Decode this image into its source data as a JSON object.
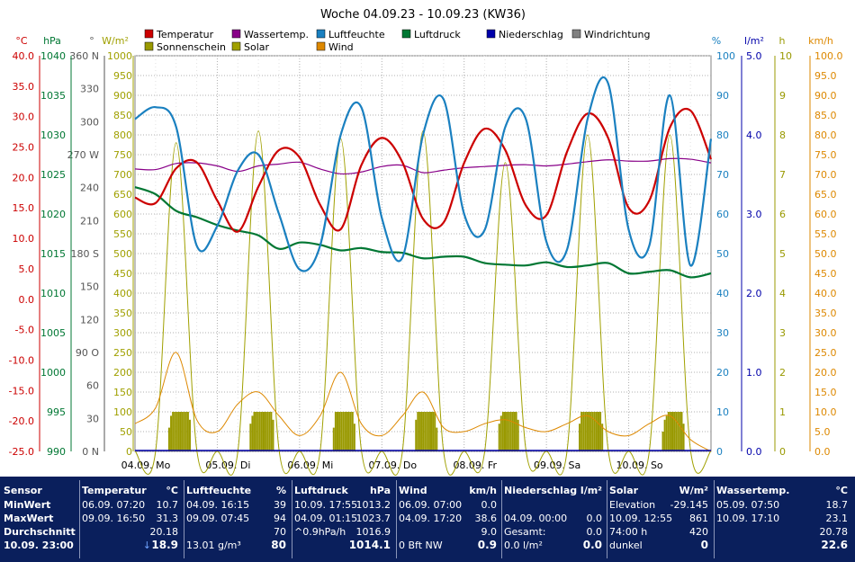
{
  "chart_data": {
    "type": "line",
    "title": "Woche 04.09.23 - 10.09.23 (KW36)",
    "x_labels": [
      "04.09.  Mo",
      "05.09.  Di",
      "06.09.  Mi",
      "07.09.  Do",
      "08.09.  Fr",
      "09.09.  Sa",
      "10.09.  So"
    ],
    "legend": [
      {
        "name": "Temperatur",
        "color": "#cc0000"
      },
      {
        "name": "Wassertemp.",
        "color": "#880088"
      },
      {
        "name": "Luftfeuchte",
        "color": "#1a80c0"
      },
      {
        "name": "Luftdruck",
        "color": "#007733"
      },
      {
        "name": "Niederschlag",
        "color": "#0000aa"
      },
      {
        "name": "Windrichtung",
        "color": "#808080"
      },
      {
        "name": "Sonnenschein",
        "color": "#999900"
      },
      {
        "name": "Solar",
        "color": "#a0a000"
      },
      {
        "name": "Wind",
        "color": "#dd8800"
      }
    ],
    "axes": {
      "temp": {
        "unit": "°C",
        "min": -25,
        "max": 40,
        "ticks": [
          "40.0",
          "35.0",
          "30.0",
          "25.0",
          "20.0",
          "15.0",
          "10.0",
          "5.0",
          "0.0",
          "-5.0",
          "-10.0",
          "-15.0",
          "-20.0",
          "-25.0"
        ],
        "color": "#cc0000"
      },
      "pressure": {
        "unit": "hPa",
        "min": 990,
        "max": 1040,
        "ticks": [
          "1040",
          "1035",
          "1030",
          "1025",
          "1020",
          "1015",
          "1010",
          "1005",
          "1000",
          "995",
          "990"
        ],
        "color": "#007733"
      },
      "winddir": {
        "unit": "°",
        "ticks": [
          "360 N",
          "330",
          "300",
          "270 W",
          "240",
          "210",
          "180 S",
          "150",
          "120",
          "90 O",
          "60",
          "30",
          "0 N"
        ],
        "color": "#555555"
      },
      "solar": {
        "unit": "W/m²",
        "min": 0,
        "max": 1000,
        "ticks": [
          "1000",
          "950",
          "900",
          "850",
          "800",
          "750",
          "700",
          "650",
          "600",
          "550",
          "500",
          "450",
          "400",
          "350",
          "300",
          "250",
          "200",
          "150",
          "100",
          "50",
          "0"
        ],
        "color": "#a0a000"
      },
      "humidity": {
        "unit": "%",
        "min": 0,
        "max": 100,
        "ticks": [
          "100",
          "90",
          "80",
          "70",
          "60",
          "50",
          "40",
          "30",
          "20",
          "10",
          "0"
        ],
        "color": "#1a80c0"
      },
      "rain": {
        "unit": "l/m²",
        "min": 0,
        "max": 5,
        "ticks": [
          "5.0",
          "4.0",
          "3.0",
          "2.0",
          "1.0",
          "0.0"
        ],
        "color": "#0000aa"
      },
      "sunshine": {
        "unit": "h",
        "min": 0,
        "max": 10,
        "ticks": [
          "10",
          "9",
          "8",
          "7",
          "6",
          "5",
          "4",
          "3",
          "2",
          "1",
          "0"
        ],
        "color": "#999900"
      },
      "wind": {
        "unit": "km/h",
        "min": 0,
        "max": 100,
        "ticks": [
          "100.0",
          "95.0",
          "90.0",
          "85.0",
          "80.0",
          "75.0",
          "70.0",
          "65.0",
          "60.0",
          "55.0",
          "50.0",
          "45.0",
          "40.0",
          "35.0",
          "30.0",
          "25.0",
          "20.0",
          "15.0",
          "10.0",
          "5.0",
          "0.0"
        ],
        "color": "#dd8800"
      }
    },
    "grid": true,
    "x_hours": [
      0,
      6,
      12,
      18,
      24,
      30,
      36,
      42,
      48,
      54,
      60,
      66,
      72,
      78,
      84,
      90,
      96,
      102,
      108,
      114,
      120,
      126,
      132,
      138,
      144,
      150,
      156,
      162,
      168
    ],
    "series": [
      {
        "name": "Temperatur",
        "axis": "temp",
        "color": "#cc0000",
        "values": [
          16.7,
          15.8,
          21.5,
          22.5,
          16.2,
          11.1,
          18.5,
          24.5,
          23.3,
          15.5,
          11.5,
          22,
          26.5,
          22.5,
          13.2,
          12.6,
          22.4,
          28,
          24.5,
          15.4,
          13.8,
          24.2,
          30.5,
          26.5,
          15,
          16.2,
          28.2,
          31,
          23
        ]
      },
      {
        "name": "Wassertemp.",
        "axis": "temp",
        "color": "#880088",
        "values": [
          21.4,
          21.3,
          22.3,
          22.4,
          21.9,
          21,
          21.9,
          22.2,
          22.5,
          21.4,
          20.6,
          20.9,
          21.8,
          22,
          20.8,
          21.2,
          21.6,
          21.8,
          22,
          22.1,
          21.9,
          22.2,
          22.6,
          22.9,
          22.7,
          22.7,
          23.1,
          23,
          22.4
        ]
      },
      {
        "name": "Luftfeuchte",
        "axis": "humidity",
        "color": "#1a80c0",
        "values": [
          84,
          87,
          82,
          52,
          57,
          71,
          75,
          60,
          46,
          52,
          80,
          87,
          59,
          49,
          80,
          89,
          60,
          56,
          82,
          84,
          53,
          51,
          84,
          93,
          56,
          52,
          90,
          47,
          79
        ]
      },
      {
        "name": "Luftdruck",
        "axis": "pressure",
        "color": "#007733",
        "values": [
          1023.4,
          1022.5,
          1020.4,
          1019.6,
          1018.6,
          1017.9,
          1017.3,
          1015.6,
          1016.4,
          1016.1,
          1015.4,
          1015.7,
          1015.2,
          1015.1,
          1014.4,
          1014.6,
          1014.6,
          1013.8,
          1013.6,
          1013.5,
          1013.9,
          1013.3,
          1013.5,
          1013.8,
          1012.5,
          1012.7,
          1012.9,
          1012.0,
          1012.5
        ]
      },
      {
        "name": "Solar",
        "axis": "solar",
        "color": "#a0a000",
        "values": [
          0,
          0,
          780,
          5,
          0,
          0,
          810,
          5,
          0,
          0,
          790,
          5,
          0,
          0,
          810,
          0,
          0,
          0,
          730,
          5,
          0,
          0,
          800,
          5,
          0,
          0,
          800,
          5,
          0
        ]
      },
      {
        "name": "Wind",
        "axis": "wind",
        "color": "#dd8800",
        "values": [
          7,
          11,
          25,
          8,
          5,
          12,
          15,
          9,
          4,
          9,
          20,
          7,
          4,
          9,
          15,
          6,
          5,
          7,
          8,
          6,
          5,
          7,
          9,
          5,
          4,
          7,
          9,
          3,
          0
        ]
      }
    ],
    "sunshine_hours_per_day": [
      [
        0.6,
        0.9,
        1,
        1,
        1,
        1,
        1,
        1,
        1,
        1,
        1,
        0.8
      ],
      [
        0.7,
        0.9,
        1,
        1,
        1,
        1,
        1,
        1,
        1,
        1,
        1,
        1,
        0.8
      ],
      [
        0.6,
        1,
        1,
        1,
        1,
        1,
        1,
        1,
        1,
        1,
        1,
        0.7
      ],
      [
        0.8,
        1,
        1,
        1,
        1,
        1,
        1,
        1,
        1,
        1,
        1,
        0.6
      ],
      [
        0.7,
        0.9,
        1,
        1,
        1,
        1,
        1,
        1,
        1,
        1,
        0.8
      ],
      [
        0.7,
        1,
        1,
        1,
        1,
        1,
        1,
        1,
        1,
        1,
        1,
        1,
        0.7
      ],
      [
        0.5,
        0.8,
        0.9,
        1,
        1,
        1,
        1,
        1,
        1,
        1,
        1,
        0.7
      ]
    ]
  },
  "panel": {
    "cols": [
      {
        "head": "Sensor",
        "unit": "",
        "rows": [
          {
            "l": "MinWert"
          },
          {
            "l": "MaxWert"
          },
          {
            "l": "Durchschnitt"
          },
          {
            "l": "10.09.  23:00"
          }
        ]
      },
      {
        "head": "Temperatur",
        "unit": "°C",
        "rows": [
          {
            "l": "06.09.  07:20",
            "r": "10.7"
          },
          {
            "l": "09.09.  16:50",
            "r": "31.3"
          },
          {
            "r": "20.18"
          },
          {
            "m": "↓",
            "r": "18.9",
            "big": true
          }
        ]
      },
      {
        "head": "Luftfeuchte",
        "unit": "%",
        "rows": [
          {
            "l": "04.09.  16:15",
            "r": "39"
          },
          {
            "l": "09.09.  07:45",
            "r": "94"
          },
          {
            "r": "70"
          },
          {
            "l": "13.01 g/m³",
            "r": "80",
            "big": true
          }
        ]
      },
      {
        "head": "Luftdruck",
        "unit": "hPa",
        "rows": [
          {
            "l": "10.09.  17:55",
            "r": "1013.2"
          },
          {
            "l": "04.09.  01:15",
            "r": "1023.7"
          },
          {
            "l": "^0.9hPa/h",
            "r": "1016.9"
          },
          {
            "r": "1014.1",
            "big": true
          }
        ]
      },
      {
        "head": "Wind",
        "unit": "km/h",
        "rows": [
          {
            "l": "06.09.  07:00",
            "r": "0.0"
          },
          {
            "l": "04.09.  17:20",
            "r": "38.6"
          },
          {
            "r": "9.0"
          },
          {
            "l": "0 Bft NW",
            "r": "0.9",
            "big": true
          }
        ]
      },
      {
        "head": "Niederschlag",
        "unit": "l/m²",
        "rows": [
          {
            "r": ""
          },
          {
            "l": "04.09.  00:00",
            "r": "0.0"
          },
          {
            "l": "Gesamt:",
            "r": "0.0"
          },
          {
            "l": "0.0 l/m²",
            "r": "0.0",
            "big": true
          }
        ]
      },
      {
        "head": "Solar",
        "unit": "W/m²",
        "rows": [
          {
            "l": "Elevation",
            "r": "-29.145"
          },
          {
            "l": "10.09.  12:55",
            "r": "861"
          },
          {
            "l": "74:00 h",
            "r": "420"
          },
          {
            "l": "dunkel",
            "r": "0",
            "big": true
          }
        ]
      },
      {
        "head": "Wassertemp.",
        "unit": "°C",
        "rows": [
          {
            "l": "05.09.  07:50",
            "r": "18.7"
          },
          {
            "l": "10.09.  17:10",
            "r": "23.1"
          },
          {
            "r": "20.78"
          },
          {
            "r": "22.6",
            "big": true
          }
        ]
      }
    ]
  }
}
